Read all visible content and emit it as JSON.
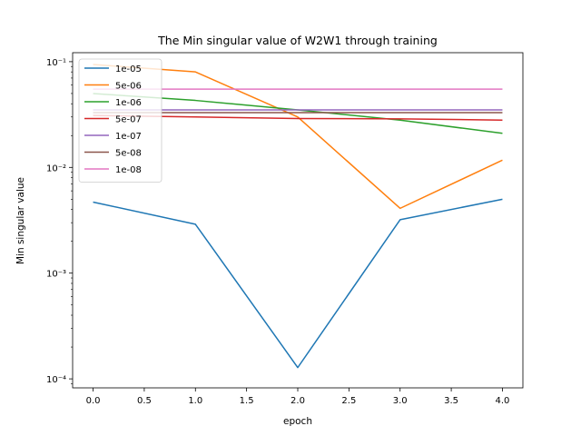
{
  "chart_data": {
    "type": "line",
    "title": "The Min singular value of W2W1 through training",
    "xlabel": "epoch",
    "ylabel": "Min singular value",
    "yscale": "log",
    "xlim": [
      -0.2,
      4.2
    ],
    "ylim": [
      0.0001,
      0.1
    ],
    "x": [
      0,
      1,
      2,
      3,
      4
    ],
    "x_ticks": [
      0.0,
      0.5,
      1.0,
      1.5,
      2.0,
      2.5,
      3.0,
      3.5,
      4.0
    ],
    "x_tick_labels": [
      "0.0",
      "0.5",
      "1.0",
      "1.5",
      "2.0",
      "2.5",
      "3.0",
      "3.5",
      "4.0"
    ],
    "y_ticks": [
      0.0001,
      0.001,
      0.01,
      0.1
    ],
    "y_tick_labels": [
      "10⁻⁴",
      "10⁻³",
      "10⁻²",
      "10⁻¹"
    ],
    "legend_position": "top-left",
    "grid": false,
    "series": [
      {
        "name": "1e-05",
        "color": "#1f77b4",
        "values": [
          0.0047,
          0.0029,
          0.000128,
          0.0032,
          0.005
        ]
      },
      {
        "name": "5e-06",
        "color": "#ff7f0e",
        "values": [
          0.094,
          0.08,
          0.03,
          0.0041,
          0.0117
        ]
      },
      {
        "name": "1e-06",
        "color": "#2ca02c",
        "values": [
          0.05,
          0.043,
          0.035,
          0.028,
          0.021
        ]
      },
      {
        "name": "5e-07",
        "color": "#d62728",
        "values": [
          0.031,
          0.03,
          0.029,
          0.0288,
          0.028
        ]
      },
      {
        "name": "1e-07",
        "color": "#9467bd",
        "values": [
          0.035,
          0.035,
          0.035,
          0.035,
          0.035
        ]
      },
      {
        "name": "5e-08",
        "color": "#8c564b",
        "values": [
          0.033,
          0.033,
          0.033,
          0.033,
          0.033
        ]
      },
      {
        "name": "1e-08",
        "color": "#e377c2",
        "values": [
          0.055,
          0.055,
          0.055,
          0.055,
          0.055
        ]
      }
    ]
  }
}
